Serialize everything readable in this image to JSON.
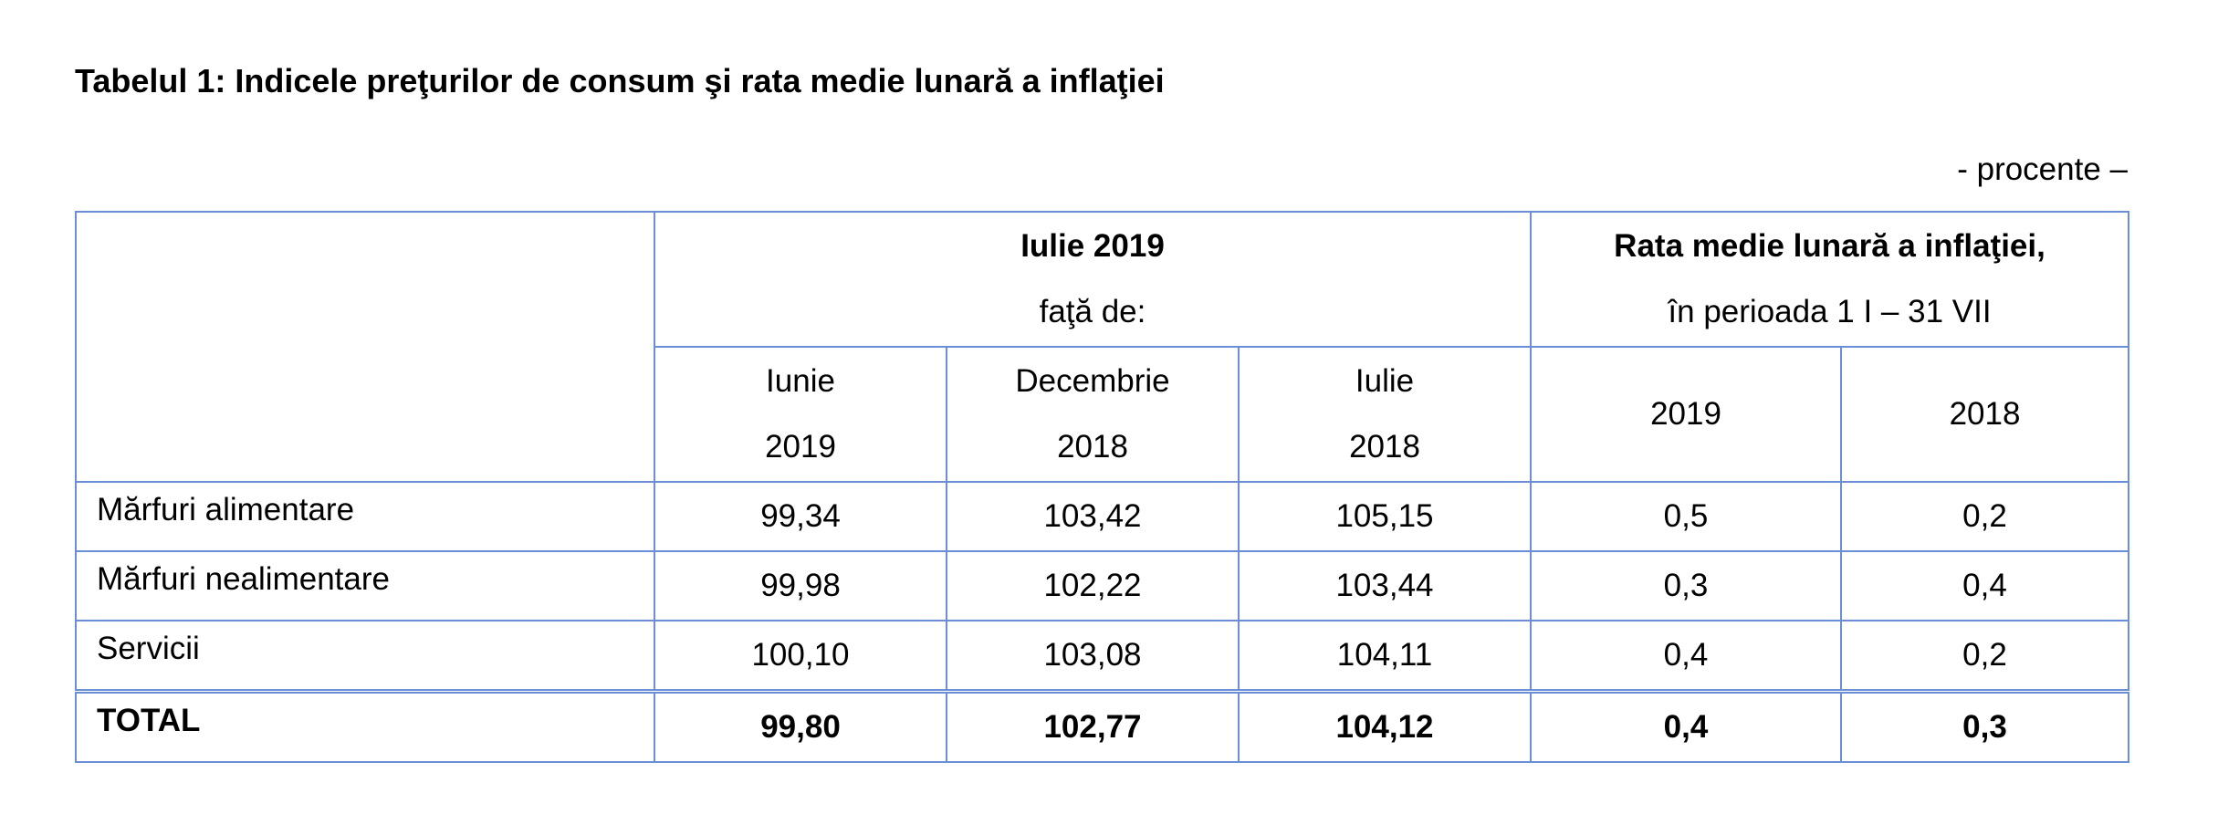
{
  "title": "Tabelul 1: Indicele preţurilor de consum şi rata medie lunară a inflaţiei",
  "unit_note": "- procente –",
  "table": {
    "group1": {
      "title": "Iulie 2019",
      "subtitle": "faţă de:",
      "cols": [
        {
          "line1": "Iunie",
          "line2": "2019"
        },
        {
          "line1": "Decembrie",
          "line2": "2018"
        },
        {
          "line1": "Iulie",
          "line2": "2018"
        }
      ]
    },
    "group2": {
      "title": "Rata medie lunară a inflaţiei,",
      "subtitle": "în perioada 1 I – 31 VII",
      "cols": [
        "2019",
        "2018"
      ]
    },
    "rows": [
      {
        "label": "Mărfuri alimentare",
        "values": [
          "99,34",
          "103,42",
          "105,15",
          "0,5",
          "0,2"
        ]
      },
      {
        "label": "Mărfuri nealimentare",
        "values": [
          "99,98",
          "102,22",
          "103,44",
          "0,3",
          "0,4"
        ]
      },
      {
        "label": "Servicii",
        "values": [
          "100,10",
          "103,08",
          "104,11",
          "0,4",
          "0,2"
        ]
      }
    ],
    "total": {
      "label": "TOTAL",
      "values": [
        "99,80",
        "102,77",
        "104,12",
        "0,4",
        "0,3"
      ]
    }
  }
}
